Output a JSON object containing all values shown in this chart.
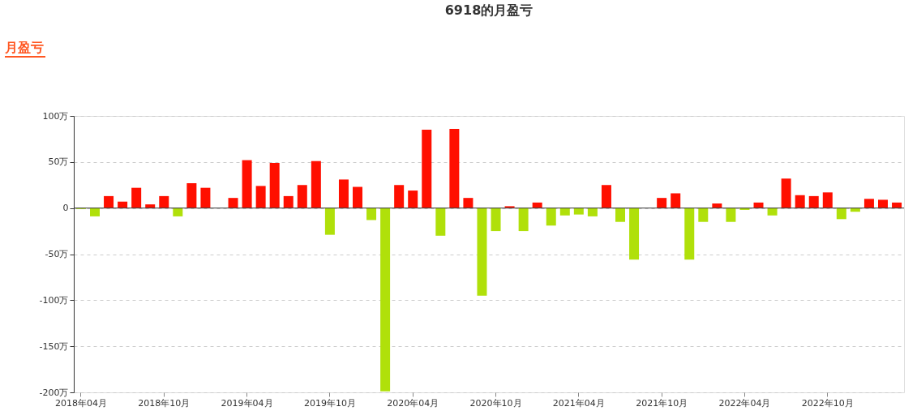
{
  "chart_data": {
    "type": "bar",
    "title": "6918的月盈亏",
    "annotations": [
      "月盈亏"
    ],
    "categories": [
      "2018年04月",
      null,
      null,
      null,
      null,
      null,
      "2018年10月",
      null,
      null,
      null,
      null,
      null,
      "2019年04月",
      null,
      null,
      null,
      null,
      null,
      "2019年10月",
      null,
      null,
      null,
      null,
      null,
      "2020年04月",
      null,
      null,
      null,
      null,
      null,
      "2020年10月",
      null,
      null,
      null,
      null,
      null,
      "2021年04月",
      null,
      null,
      null,
      null,
      null,
      "2021年10月",
      null,
      null,
      null,
      null,
      null,
      "2022年04月",
      null,
      null,
      null,
      null,
      null,
      "2022年10月",
      null,
      null,
      null,
      null,
      null
    ],
    "values": [
      -1,
      -9,
      13,
      7,
      22,
      4,
      13,
      -9,
      27,
      22,
      0,
      11,
      52,
      24,
      49,
      13,
      25,
      51,
      -29,
      31,
      23,
      -13,
      -199,
      25,
      19,
      85,
      -30,
      86,
      11,
      -95,
      -25,
      2,
      -25,
      6,
      -19,
      -8,
      -7,
      -9,
      25,
      -15,
      -56,
      0,
      11,
      16,
      -56,
      -15,
      5,
      -15,
      -2,
      6,
      -8,
      32,
      14,
      13,
      17,
      -12,
      -4,
      10,
      9,
      6
    ],
    "colors": [
      "#b0e00a",
      "#b0e00a",
      "#ff0f00",
      "#ff0f00",
      "#ff0f00",
      "#ff0f00",
      "#ff0f00",
      "#b0e00a",
      "#ff0f00",
      "#ff0f00",
      "#ff0f00",
      "#ff0f00",
      "#ff0f00",
      "#ff0f00",
      "#ff0f00",
      "#ff0f00",
      "#ff0f00",
      "#ff0f00",
      "#b0e00a",
      "#ff0f00",
      "#ff0f00",
      "#b0e00a",
      "#b0e00a",
      "#ff0f00",
      "#ff0f00",
      "#ff0f00",
      "#b0e00a",
      "#ff0f00",
      "#ff0f00",
      "#b0e00a",
      "#b0e00a",
      "#ff0f00",
      "#b0e00a",
      "#ff0f00",
      "#b0e00a",
      "#b0e00a",
      "#b0e00a",
      "#b0e00a",
      "#ff0f00",
      "#b0e00a",
      "#b0e00a",
      "#b0e00a",
      "#ff0f00",
      "#ff0f00",
      "#b0e00a",
      "#b0e00a",
      "#ff0f00",
      "#b0e00a",
      "#b0e00a",
      "#ff0f00",
      "#b0e00a",
      "#ff0f00",
      "#ff0f00",
      "#ff0f00",
      "#ff0f00",
      "#b0e00a",
      "#b0e00a",
      "#ff0f00",
      "#ff0f00",
      "#ff0f00"
    ],
    "ylim": [
      -200,
      100
    ],
    "yticks": [
      {
        "value": -200,
        "label": "-200万"
      },
      {
        "value": -150,
        "label": "-150万"
      },
      {
        "value": -100,
        "label": "-100万"
      },
      {
        "value": -50,
        "label": "-50万"
      },
      {
        "value": 0,
        "label": "0"
      },
      {
        "value": 50,
        "label": "50万"
      },
      {
        "value": 100,
        "label": "100万"
      }
    ],
    "grid": "y"
  }
}
